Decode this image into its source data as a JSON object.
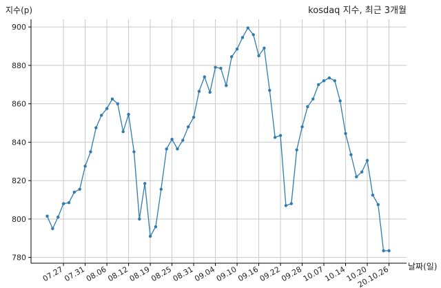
{
  "chart_data": {
    "type": "line",
    "title": "kosdaq 지수, 최근 3개월",
    "ylabel": "지수(p)",
    "xlabel": "날짜(일)",
    "ylim": [
      777,
      904
    ],
    "yticks": [
      780,
      800,
      820,
      840,
      860,
      880,
      900
    ],
    "grid": true,
    "x": [
      "07.22",
      "07.23",
      "07.24",
      "07.27",
      "07.28",
      "07.29",
      "07.30",
      "07.31",
      "08.03",
      "08.04",
      "08.05",
      "08.06",
      "08.07",
      "08.10",
      "08.11",
      "08.12",
      "08.13",
      "08.14",
      "08.18",
      "08.19",
      "08.20",
      "08.21",
      "08.24",
      "08.25",
      "08.26",
      "08.27",
      "08.28",
      "08.31",
      "09.01",
      "09.02",
      "09.03",
      "09.04",
      "09.07",
      "09.08",
      "09.09",
      "09.10",
      "09.11",
      "09.14",
      "09.15",
      "09.16",
      "09.17",
      "09.18",
      "09.21",
      "09.22",
      "09.23",
      "09.24",
      "09.25",
      "09.28",
      "09.29",
      "10.05",
      "10.06",
      "10.07",
      "10.08",
      "10.12",
      "10.13",
      "10.14",
      "10.15",
      "10.16",
      "10.19",
      "10.20",
      "10.21",
      "10.22",
      "10.23",
      "10.26"
    ],
    "xticks": [
      "07.27",
      "07.31",
      "08.06",
      "08.12",
      "08.19",
      "08.25",
      "08.31",
      "09.04",
      "09.10",
      "09.16",
      "09.22",
      "09.28",
      "10.07",
      "10.14",
      "10.20",
      "20.10.26"
    ],
    "series": [
      {
        "values": [
          801.5,
          795,
          801,
          808,
          808.5,
          814,
          815.5,
          827.5,
          835,
          847.5,
          854,
          857.5,
          862.5,
          860,
          845.5,
          854.5,
          835,
          800,
          818.5,
          791,
          796,
          815.5,
          836.5,
          841.5,
          836.5,
          841,
          848,
          853,
          866.5,
          874,
          866,
          879,
          878.5,
          869.5,
          884.5,
          888.5,
          894.5,
          899.5,
          896,
          885,
          889,
          867,
          842.5,
          843.5,
          807,
          808,
          836,
          848,
          858.5,
          862.5,
          870,
          872,
          873.5,
          872,
          861.5,
          844.5,
          833.5,
          822,
          824.5,
          830.5,
          812.5,
          807.5,
          783.5,
          783.5
        ]
      }
    ]
  }
}
